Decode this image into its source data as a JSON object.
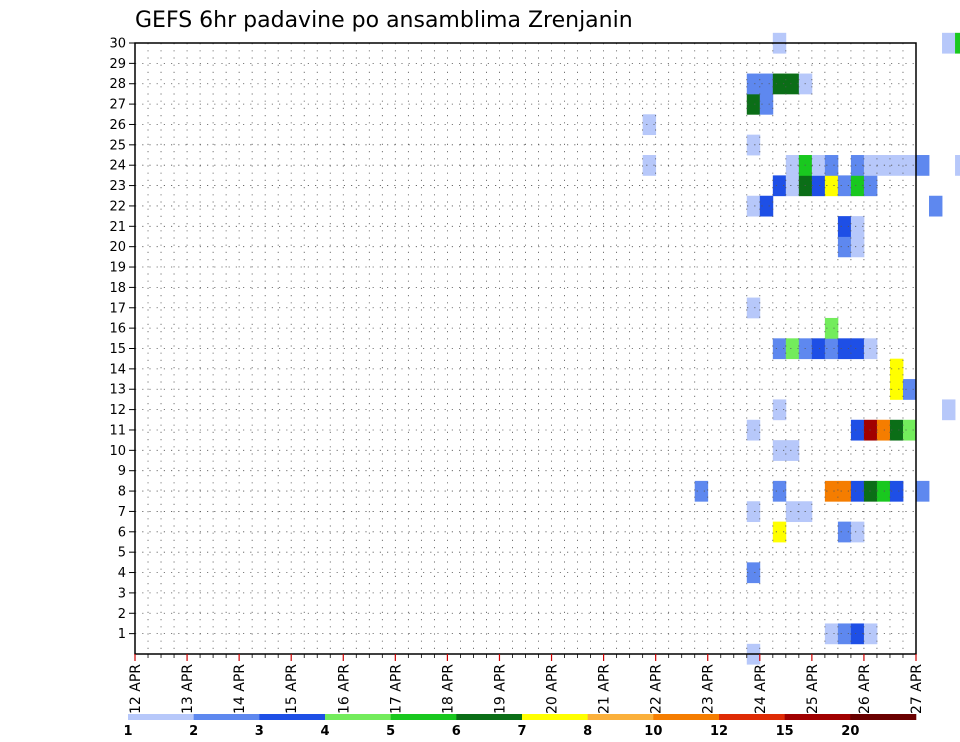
{
  "chart_data": {
    "type": "heatmap",
    "title": "GEFS 6hr padavine po ansamblima Zrenjanin",
    "xlabel": "",
    "ylabel": "",
    "x_tick_labels": [
      "12 APR",
      "13 APR",
      "14 APR",
      "15 APR",
      "16 APR",
      "17 APR",
      "18 APR",
      "19 APR",
      "20 APR",
      "21 APR",
      "22 APR",
      "23 APR",
      "24 APR",
      "25 APR",
      "26 APR",
      "27 APR"
    ],
    "x_step_hours": 6,
    "y_tick_labels": [
      "1",
      "2",
      "3",
      "4",
      "5",
      "6",
      "7",
      "8",
      "9",
      "10",
      "11",
      "12",
      "13",
      "14",
      "15",
      "16",
      "17",
      "18",
      "19",
      "20",
      "21",
      "22",
      "23",
      "24",
      "25",
      "26",
      "27",
      "28",
      "29",
      "30"
    ],
    "ylim": [
      0,
      30
    ],
    "grid": true,
    "colorbar": {
      "position": "bottom",
      "levels": [
        "1",
        "2",
        "3",
        "4",
        "5",
        "6",
        "7",
        "8",
        "10",
        "12",
        "15",
        "20"
      ],
      "colors": [
        "#b7c8fa",
        "#5e88ef",
        "#1e4fe6",
        "#73ec5c",
        "#19c81f",
        "#0b6e17",
        "#ffff00",
        "#fbb03b",
        "#f57d00",
        "#df2b05",
        "#a10000",
        "#6a0000"
      ]
    },
    "cells_note": "each cell: [member, step_index, color_class] where step 0 = 12 APR 00z, 4 steps per day, color_class is index into colorbar.colors",
    "cells": [
      [
        1,
        53,
        0
      ],
      [
        1,
        54,
        1
      ],
      [
        1,
        55,
        2
      ],
      [
        1,
        56,
        0
      ],
      [
        1,
        102,
        1
      ],
      [
        1,
        103,
        8
      ],
      [
        1,
        104,
        8
      ],
      [
        1,
        105,
        5
      ],
      [
        1,
        106,
        8
      ],
      [
        1,
        107,
        2
      ],
      [
        1,
        108,
        3
      ],
      [
        1,
        109,
        0
      ],
      [
        1,
        110,
        0
      ],
      [
        1,
        113,
        0
      ],
      [
        2,
        109,
        0
      ],
      [
        2,
        110,
        4
      ],
      [
        2,
        111,
        0
      ],
      [
        3,
        124,
        0
      ],
      [
        4,
        47,
        1
      ],
      [
        4,
        77,
        5
      ],
      [
        4,
        78,
        8
      ],
      [
        4,
        81,
        4
      ],
      [
        4,
        82,
        6
      ],
      [
        4,
        83,
        5
      ],
      [
        4,
        84,
        1
      ],
      [
        5,
        78,
        1
      ],
      [
        6,
        49,
        6
      ],
      [
        6,
        54,
        1
      ],
      [
        6,
        55,
        0
      ],
      [
        7,
        47,
        0
      ],
      [
        7,
        50,
        0
      ],
      [
        7,
        51,
        0
      ],
      [
        7,
        76,
        8
      ],
      [
        7,
        112,
        0
      ],
      [
        7,
        115,
        0
      ],
      [
        7,
        117,
        9
      ],
      [
        7,
        118,
        5
      ],
      [
        8,
        43,
        1
      ],
      [
        8,
        49,
        1
      ],
      [
        8,
        53,
        8
      ],
      [
        8,
        54,
        8
      ],
      [
        8,
        55,
        2
      ],
      [
        8,
        56,
        5
      ],
      [
        8,
        57,
        4
      ],
      [
        8,
        58,
        2
      ],
      [
        8,
        60,
        1
      ],
      [
        8,
        75,
        1
      ],
      [
        8,
        76,
        2
      ],
      [
        8,
        80,
        0
      ],
      [
        9,
        85,
        1
      ],
      [
        9,
        109,
        0
      ],
      [
        9,
        110,
        3
      ],
      [
        9,
        111,
        0
      ],
      [
        10,
        49,
        0
      ],
      [
        10,
        50,
        0
      ],
      [
        10,
        77,
        10
      ],
      [
        10,
        78,
        5
      ],
      [
        10,
        80,
        1
      ],
      [
        10,
        81,
        2
      ],
      [
        10,
        84,
        1
      ],
      [
        10,
        109,
        0
      ],
      [
        11,
        47,
        0
      ],
      [
        11,
        55,
        2
      ],
      [
        11,
        56,
        10
      ],
      [
        11,
        57,
        8
      ],
      [
        11,
        58,
        5
      ],
      [
        11,
        59,
        3
      ],
      [
        11,
        64,
        1
      ],
      [
        11,
        65,
        3
      ],
      [
        11,
        66,
        2
      ],
      [
        11,
        68,
        1
      ],
      [
        11,
        69,
        2
      ],
      [
        11,
        130,
        1
      ],
      [
        11,
        131,
        1
      ],
      [
        12,
        49,
        0
      ],
      [
        12,
        62,
        0
      ],
      [
        12,
        97,
        0
      ],
      [
        12,
        99,
        2
      ],
      [
        13,
        58,
        6
      ],
      [
        13,
        59,
        1
      ],
      [
        13,
        99,
        1
      ],
      [
        13,
        120,
        0
      ],
      [
        14,
        58,
        6
      ],
      [
        14,
        75,
        1
      ],
      [
        14,
        76,
        3
      ],
      [
        14,
        94,
        0
      ],
      [
        14,
        124,
        0
      ],
      [
        14,
        125,
        0
      ],
      [
        14,
        129,
        0
      ],
      [
        15,
        49,
        1
      ],
      [
        15,
        50,
        3
      ],
      [
        15,
        51,
        1
      ],
      [
        15,
        52,
        2
      ],
      [
        15,
        53,
        1
      ],
      [
        15,
        54,
        2
      ],
      [
        15,
        55,
        2
      ],
      [
        15,
        56,
        0
      ],
      [
        16,
        53,
        3
      ],
      [
        17,
        47,
        0
      ],
      [
        17,
        74,
        0
      ],
      [
        17,
        75,
        2
      ],
      [
        17,
        76,
        0
      ],
      [
        17,
        110,
        0
      ],
      [
        18,
        72,
        1
      ],
      [
        18,
        126,
        0
      ],
      [
        18,
        127,
        0
      ],
      [
        18,
        129,
        2
      ],
      [
        18,
        130,
        0
      ],
      [
        19,
        77,
        2
      ],
      [
        19,
        78,
        1
      ],
      [
        19,
        79,
        2
      ],
      [
        19,
        99,
        1
      ],
      [
        19,
        100,
        2
      ],
      [
        19,
        101,
        4
      ],
      [
        19,
        113,
        5
      ],
      [
        19,
        114,
        4
      ],
      [
        19,
        128,
        4
      ],
      [
        19,
        129,
        11
      ],
      [
        19,
        130,
        8
      ],
      [
        19,
        131,
        1
      ],
      [
        20,
        54,
        1
      ],
      [
        20,
        55,
        0
      ],
      [
        21,
        54,
        2
      ],
      [
        21,
        55,
        0
      ],
      [
        21,
        76,
        0
      ],
      [
        22,
        47,
        0
      ],
      [
        22,
        48,
        2
      ],
      [
        22,
        61,
        1
      ],
      [
        22,
        76,
        8
      ],
      [
        22,
        81,
        0
      ],
      [
        22,
        131,
        8
      ],
      [
        23,
        49,
        2
      ],
      [
        23,
        50,
        0
      ],
      [
        23,
        51,
        5
      ],
      [
        23,
        52,
        2
      ],
      [
        23,
        53,
        6
      ],
      [
        23,
        54,
        1
      ],
      [
        23,
        55,
        4
      ],
      [
        23,
        56,
        1
      ],
      [
        23,
        77,
        4
      ],
      [
        23,
        78,
        5
      ],
      [
        23,
        90,
        0
      ],
      [
        23,
        105,
        2
      ],
      [
        23,
        106,
        2
      ],
      [
        23,
        107,
        0
      ],
      [
        24,
        39,
        0
      ],
      [
        24,
        50,
        0
      ],
      [
        24,
        51,
        4
      ],
      [
        24,
        52,
        0
      ],
      [
        24,
        53,
        1
      ],
      [
        24,
        55,
        1
      ],
      [
        24,
        56,
        0
      ],
      [
        24,
        57,
        0
      ],
      [
        24,
        58,
        0
      ],
      [
        24,
        59,
        0
      ],
      [
        24,
        60,
        1
      ],
      [
        24,
        63,
        0
      ],
      [
        24,
        71,
        0
      ],
      [
        24,
        72,
        0
      ],
      [
        24,
        80,
        1
      ],
      [
        24,
        81,
        2
      ],
      [
        25,
        47,
        0
      ],
      [
        25,
        66,
        8
      ],
      [
        25,
        67,
        6
      ],
      [
        25,
        68,
        10
      ],
      [
        25,
        69,
        9
      ],
      [
        25,
        70,
        0
      ],
      [
        25,
        73,
        0
      ],
      [
        25,
        74,
        0
      ],
      [
        25,
        75,
        0
      ],
      [
        25,
        77,
        2
      ],
      [
        25,
        78,
        6
      ],
      [
        25,
        79,
        4
      ],
      [
        25,
        80,
        0
      ],
      [
        25,
        114,
        4
      ],
      [
        25,
        115,
        5
      ],
      [
        25,
        126,
        0
      ],
      [
        26,
        39,
        0
      ],
      [
        26,
        76,
        2
      ],
      [
        26,
        77,
        8
      ],
      [
        26,
        78,
        5
      ],
      [
        26,
        89,
        2
      ],
      [
        26,
        96,
        1
      ],
      [
        26,
        97,
        0
      ],
      [
        27,
        47,
        5
      ],
      [
        27,
        48,
        1
      ],
      [
        27,
        76,
        1
      ],
      [
        27,
        77,
        4
      ],
      [
        27,
        78,
        0
      ],
      [
        27,
        85,
        1
      ],
      [
        27,
        86,
        2
      ],
      [
        27,
        87,
        1
      ],
      [
        27,
        102,
        1
      ],
      [
        27,
        131,
        1
      ],
      [
        28,
        47,
        1
      ],
      [
        28,
        48,
        1
      ],
      [
        28,
        49,
        5
      ],
      [
        28,
        50,
        5
      ],
      [
        28,
        51,
        0
      ],
      [
        28,
        72,
        0
      ],
      [
        28,
        117,
        2
      ],
      [
        29,
        74,
        0
      ],
      [
        29,
        109,
        4
      ],
      [
        29,
        110,
        5
      ],
      [
        29,
        112,
        8
      ],
      [
        29,
        113,
        2
      ],
      [
        29,
        114,
        1
      ],
      [
        29,
        115,
        2
      ],
      [
        29,
        118,
        0
      ],
      [
        30,
        49,
        0
      ],
      [
        30,
        62,
        0
      ],
      [
        30,
        63,
        4
      ],
      [
        30,
        80,
        0
      ],
      [
        30,
        113,
        0
      ],
      [
        0,
        47,
        0
      ],
      [
        0,
        74,
        2
      ],
      [
        0,
        104,
        0
      ],
      [
        0,
        116,
        1
      ],
      [
        0,
        117,
        0
      ],
      [
        0,
        131,
        0
      ]
    ]
  }
}
